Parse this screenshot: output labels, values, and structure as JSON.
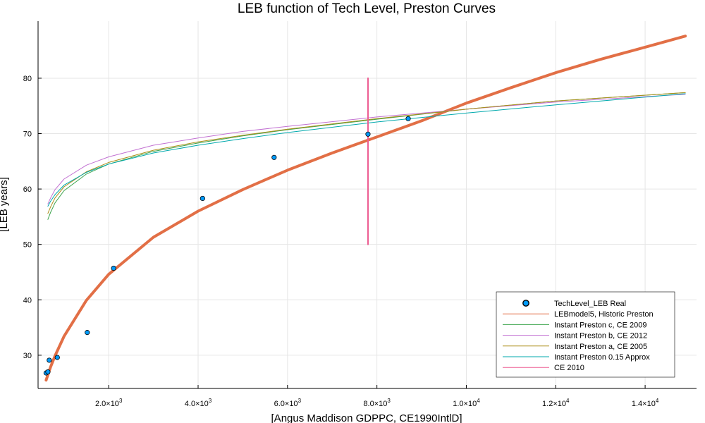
{
  "chart_data": {
    "type": "line",
    "title": "LEB function of Tech Level, Preston Curves",
    "xlabel": "[Angus Maddison GDPPC, CE1990IntlD]",
    "ylabel": "[LEB years]",
    "xlim": [
      420,
      15150
    ],
    "ylim": [
      24,
      90.3
    ],
    "grid": true,
    "legend_position": "bottom-right",
    "x_ticks": [
      {
        "value": 2000,
        "mantissa": "2.0",
        "exp": "3"
      },
      {
        "value": 4000,
        "mantissa": "4.0",
        "exp": "3"
      },
      {
        "value": 6000,
        "mantissa": "6.0",
        "exp": "3"
      },
      {
        "value": 8000,
        "mantissa": "8.0",
        "exp": "3"
      },
      {
        "value": 10000,
        "mantissa": "1.0",
        "exp": "4"
      },
      {
        "value": 12000,
        "mantissa": "1.2",
        "exp": "4"
      },
      {
        "value": 14000,
        "mantissa": "1.4",
        "exp": "4"
      }
    ],
    "y_ticks": [
      {
        "value": 30,
        "label": "30"
      },
      {
        "value": 40,
        "label": "40"
      },
      {
        "value": 50,
        "label": "50"
      },
      {
        "value": 60,
        "label": "60"
      },
      {
        "value": 70,
        "label": "70"
      },
      {
        "value": 80,
        "label": "80"
      }
    ],
    "series": [
      {
        "name": "TechLevel_LEB Real",
        "kind": "scatter",
        "color": "#009AFA",
        "points": [
          [
            600,
            26.8
          ],
          [
            640,
            27.0
          ],
          [
            670,
            29.1
          ],
          [
            850,
            29.6
          ],
          [
            1520,
            34.1
          ],
          [
            2110,
            45.7
          ],
          [
            4100,
            58.3
          ],
          [
            5700,
            65.7
          ],
          [
            7800,
            69.9
          ],
          [
            8700,
            72.7
          ]
        ]
      },
      {
        "name": "LEBmodel5, Historic Preston",
        "kind": "line",
        "color": "#E26F46",
        "width": 4,
        "points": [
          [
            600,
            25.5
          ],
          [
            700,
            27.9
          ],
          [
            800,
            29.9
          ],
          [
            1000,
            33.4
          ],
          [
            1500,
            39.9
          ],
          [
            2000,
            44.6
          ],
          [
            3000,
            51.3
          ],
          [
            4000,
            56.0
          ],
          [
            5000,
            59.9
          ],
          [
            6000,
            63.4
          ],
          [
            7000,
            66.5
          ],
          [
            8000,
            69.4
          ],
          [
            9000,
            72.3
          ],
          [
            10000,
            75.5
          ],
          [
            11000,
            78.3
          ],
          [
            12000,
            81.0
          ],
          [
            13000,
            83.4
          ],
          [
            14000,
            85.6
          ],
          [
            14900,
            87.6
          ]
        ]
      },
      {
        "name": "Instant Preston c, CE 2009",
        "kind": "line",
        "color": "#3DA44D",
        "width": 1,
        "points": [
          [
            640,
            54.5
          ],
          [
            700,
            55.8
          ],
          [
            800,
            57.5
          ],
          [
            1000,
            59.7
          ],
          [
            1500,
            62.7
          ],
          [
            2000,
            64.5
          ],
          [
            3000,
            66.8
          ],
          [
            4000,
            68.3
          ],
          [
            5000,
            69.6
          ],
          [
            6000,
            70.7
          ],
          [
            8000,
            72.6
          ],
          [
            10000,
            74.4
          ],
          [
            12000,
            75.9
          ],
          [
            14900,
            77.4
          ]
        ]
      },
      {
        "name": "Instant Preston b, CE 2012",
        "kind": "line",
        "color": "#C271D2",
        "width": 1,
        "points": [
          [
            640,
            57.3
          ],
          [
            700,
            58.4
          ],
          [
            800,
            59.9
          ],
          [
            1000,
            61.8
          ],
          [
            1500,
            64.3
          ],
          [
            2000,
            65.8
          ],
          [
            3000,
            67.9
          ],
          [
            4000,
            69.2
          ],
          [
            5000,
            70.4
          ],
          [
            6000,
            71.3
          ],
          [
            8000,
            73.0
          ],
          [
            10000,
            74.4
          ],
          [
            12000,
            75.7
          ],
          [
            14900,
            77.1
          ]
        ]
      },
      {
        "name": "Instant Preston a, CE 2005",
        "kind": "line",
        "color": "#AC8D18",
        "width": 1,
        "points": [
          [
            640,
            55.6
          ],
          [
            700,
            56.8
          ],
          [
            800,
            58.4
          ],
          [
            1000,
            60.4
          ],
          [
            1500,
            63.1
          ],
          [
            2000,
            64.8
          ],
          [
            3000,
            67.0
          ],
          [
            4000,
            68.5
          ],
          [
            5000,
            69.7
          ],
          [
            6000,
            70.8
          ],
          [
            8000,
            72.7
          ],
          [
            10000,
            74.4
          ],
          [
            12000,
            75.9
          ],
          [
            14900,
            77.4
          ]
        ]
      },
      {
        "name": "Instant Preston 0.15 Approx",
        "kind": "line",
        "color": "#00A9AD",
        "width": 1,
        "points": [
          [
            640,
            56.9
          ],
          [
            700,
            57.8
          ],
          [
            800,
            59.0
          ],
          [
            1000,
            60.7
          ],
          [
            1500,
            63.0
          ],
          [
            2000,
            64.5
          ],
          [
            3000,
            66.5
          ],
          [
            4000,
            67.9
          ],
          [
            5000,
            69.1
          ],
          [
            6000,
            70.2
          ],
          [
            8000,
            72.1
          ],
          [
            10000,
            73.7
          ],
          [
            12000,
            75.2
          ],
          [
            14900,
            77.2
          ]
        ]
      },
      {
        "name": "CE 2010",
        "kind": "vline",
        "color": "#ED5D92",
        "width": 2,
        "points": [
          [
            7800,
            50
          ],
          [
            7800,
            80
          ]
        ]
      }
    ]
  }
}
